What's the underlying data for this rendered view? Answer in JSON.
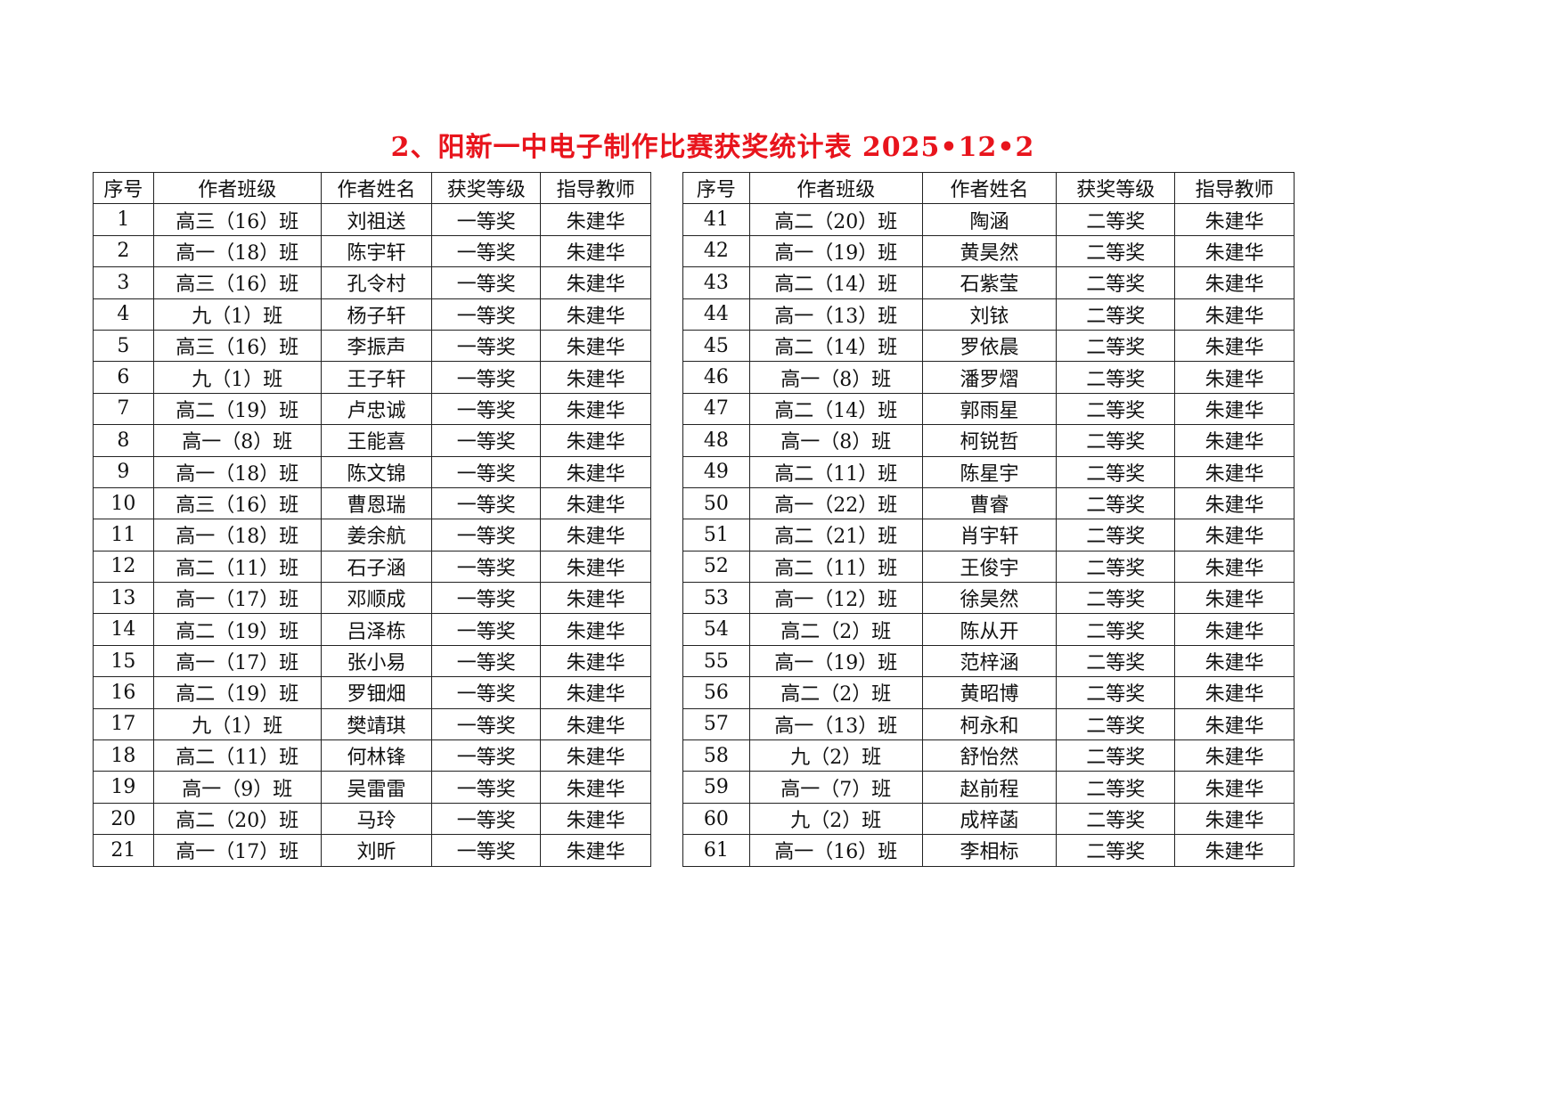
{
  "title": "2、阳新一中电子制作比赛获奖统计表 2025•12•2",
  "headers": [
    "序号",
    "作者班级",
    "作者姓名",
    "获奖等级",
    "指导教师"
  ],
  "left_rows": [
    [
      "1",
      "高三（16）班",
      "刘祖送",
      "一等奖",
      "朱建华"
    ],
    [
      "2",
      "高一（18）班",
      "陈宇轩",
      "一等奖",
      "朱建华"
    ],
    [
      "3",
      "高三（16）班",
      "孔令村",
      "一等奖",
      "朱建华"
    ],
    [
      "4",
      "九（1）班",
      "杨子轩",
      "一等奖",
      "朱建华"
    ],
    [
      "5",
      "高三（16）班",
      "李振声",
      "一等奖",
      "朱建华"
    ],
    [
      "6",
      "九（1）班",
      "王子轩",
      "一等奖",
      "朱建华"
    ],
    [
      "7",
      "高二（19）班",
      "卢忠诚",
      "一等奖",
      "朱建华"
    ],
    [
      "8",
      "高一（8）班",
      "王能喜",
      "一等奖",
      "朱建华"
    ],
    [
      "9",
      "高一（18）班",
      "陈文锦",
      "一等奖",
      "朱建华"
    ],
    [
      "10",
      "高三（16）班",
      "曹恩瑞",
      "一等奖",
      "朱建华"
    ],
    [
      "11",
      "高一（18）班",
      "姜余航",
      "一等奖",
      "朱建华"
    ],
    [
      "12",
      "高二（11）班",
      "石子涵",
      "一等奖",
      "朱建华"
    ],
    [
      "13",
      "高一（17）班",
      "邓顺成",
      "一等奖",
      "朱建华"
    ],
    [
      "14",
      "高二（19）班",
      "吕泽栋",
      "一等奖",
      "朱建华"
    ],
    [
      "15",
      "高一（17）班",
      "张小易",
      "一等奖",
      "朱建华"
    ],
    [
      "16",
      "高二（19）班",
      "罗钿畑",
      "一等奖",
      "朱建华"
    ],
    [
      "17",
      "九（1）班",
      "樊靖琪",
      "一等奖",
      "朱建华"
    ],
    [
      "18",
      "高二（11）班",
      "何林锋",
      "一等奖",
      "朱建华"
    ],
    [
      "19",
      "高一（9）班",
      "吴雷雷",
      "一等奖",
      "朱建华"
    ],
    [
      "20",
      "高二（20）班",
      "马玲",
      "一等奖",
      "朱建华"
    ],
    [
      "21",
      "高一（17）班",
      "刘昕",
      "一等奖",
      "朱建华"
    ]
  ],
  "right_rows": [
    [
      "41",
      "高二（20）班",
      "陶涵",
      "二等奖",
      "朱建华"
    ],
    [
      "42",
      "高一（19）班",
      "黄昊然",
      "二等奖",
      "朱建华"
    ],
    [
      "43",
      "高二（14）班",
      "石紫莹",
      "二等奖",
      "朱建华"
    ],
    [
      "44",
      "高一（13）班",
      "刘铱",
      "二等奖",
      "朱建华"
    ],
    [
      "45",
      "高二（14）班",
      "罗依晨",
      "二等奖",
      "朱建华"
    ],
    [
      "46",
      "高一（8）班",
      "潘罗熠",
      "二等奖",
      "朱建华"
    ],
    [
      "47",
      "高二（14）班",
      "郭雨星",
      "二等奖",
      "朱建华"
    ],
    [
      "48",
      "高一（8）班",
      "柯锐哲",
      "二等奖",
      "朱建华"
    ],
    [
      "49",
      "高二（11）班",
      "陈星宇",
      "二等奖",
      "朱建华"
    ],
    [
      "50",
      "高一（22）班",
      "曹睿",
      "二等奖",
      "朱建华"
    ],
    [
      "51",
      "高二（21）班",
      "肖宇轩",
      "二等奖",
      "朱建华"
    ],
    [
      "52",
      "高二（11）班",
      "王俊宇",
      "二等奖",
      "朱建华"
    ],
    [
      "53",
      "高一（12）班",
      "徐昊然",
      "二等奖",
      "朱建华"
    ],
    [
      "54",
      "高二（2）班",
      "陈从开",
      "二等奖",
      "朱建华"
    ],
    [
      "55",
      "高一（19）班",
      "范梓涵",
      "二等奖",
      "朱建华"
    ],
    [
      "56",
      "高二（2）班",
      "黄昭博",
      "二等奖",
      "朱建华"
    ],
    [
      "57",
      "高一（13）班",
      "柯永和",
      "二等奖",
      "朱建华"
    ],
    [
      "58",
      "九（2）班",
      "舒怡然",
      "二等奖",
      "朱建华"
    ],
    [
      "59",
      "高一（7）班",
      "赵前程",
      "二等奖",
      "朱建华"
    ],
    [
      "60",
      "九（2）班",
      "成梓菡",
      "二等奖",
      "朱建华"
    ],
    [
      "61",
      "高一（16）班",
      "李相标",
      "二等奖",
      "朱建华"
    ]
  ],
  "colors": {
    "title": "#e8141c",
    "border": "#222222"
  }
}
